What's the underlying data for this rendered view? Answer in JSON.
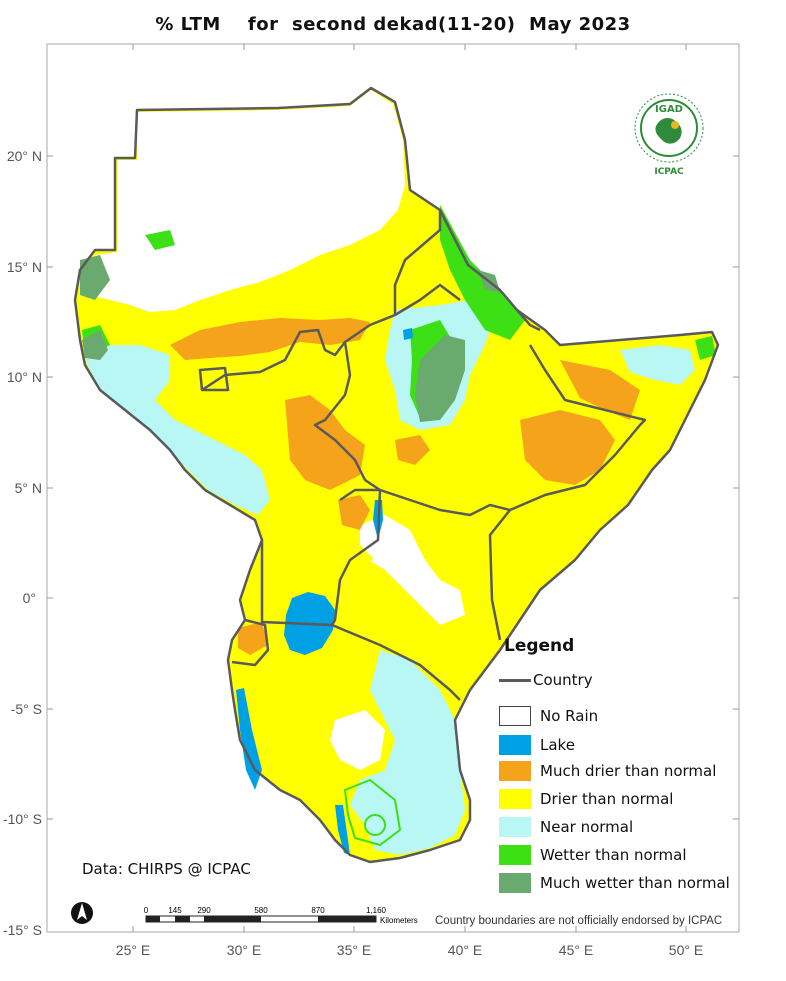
{
  "title": "% LTM    for  second dekad(11-20)  May 2023",
  "lat_ticks": [
    "20° N",
    "15° N",
    "10° N",
    "5° N",
    "0°",
    "-5° S",
    "-10° S",
    "-15° S"
  ],
  "lon_ticks": [
    "25° E",
    "30° E",
    "35° E",
    "40° E",
    "45° E",
    "50° E"
  ],
  "legend": {
    "title": "Legend",
    "country_label": "Country",
    "items": [
      {
        "label": "No Rain",
        "color": "#ffffff"
      },
      {
        "label": "Lake",
        "color": "#00a0e4"
      },
      {
        "label": "Much drier than normal",
        "color": "#f5a31a"
      },
      {
        "label": "Drier than normal",
        "color": "#ffff00"
      },
      {
        "label": "Near normal",
        "color": "#b9f7f5"
      },
      {
        "label": "Wetter than normal",
        "color": "#3de015"
      },
      {
        "label": "Much wetter than normal",
        "color": "#6aaa6e"
      }
    ]
  },
  "credit": "Data: CHIRPS @ ICPAC",
  "scalebar": {
    "ticks": [
      "0",
      "145",
      "290",
      "580",
      "870",
      "1,160"
    ],
    "unit": "Kilometers"
  },
  "disclaimer": "Country boundaries are not officially endorsed by ICPAC",
  "logo": {
    "top_text": "IGAD",
    "bottom_text": "ICPAC"
  },
  "colors": {
    "country_border": "#5a5a5a",
    "frame": "#999999"
  }
}
